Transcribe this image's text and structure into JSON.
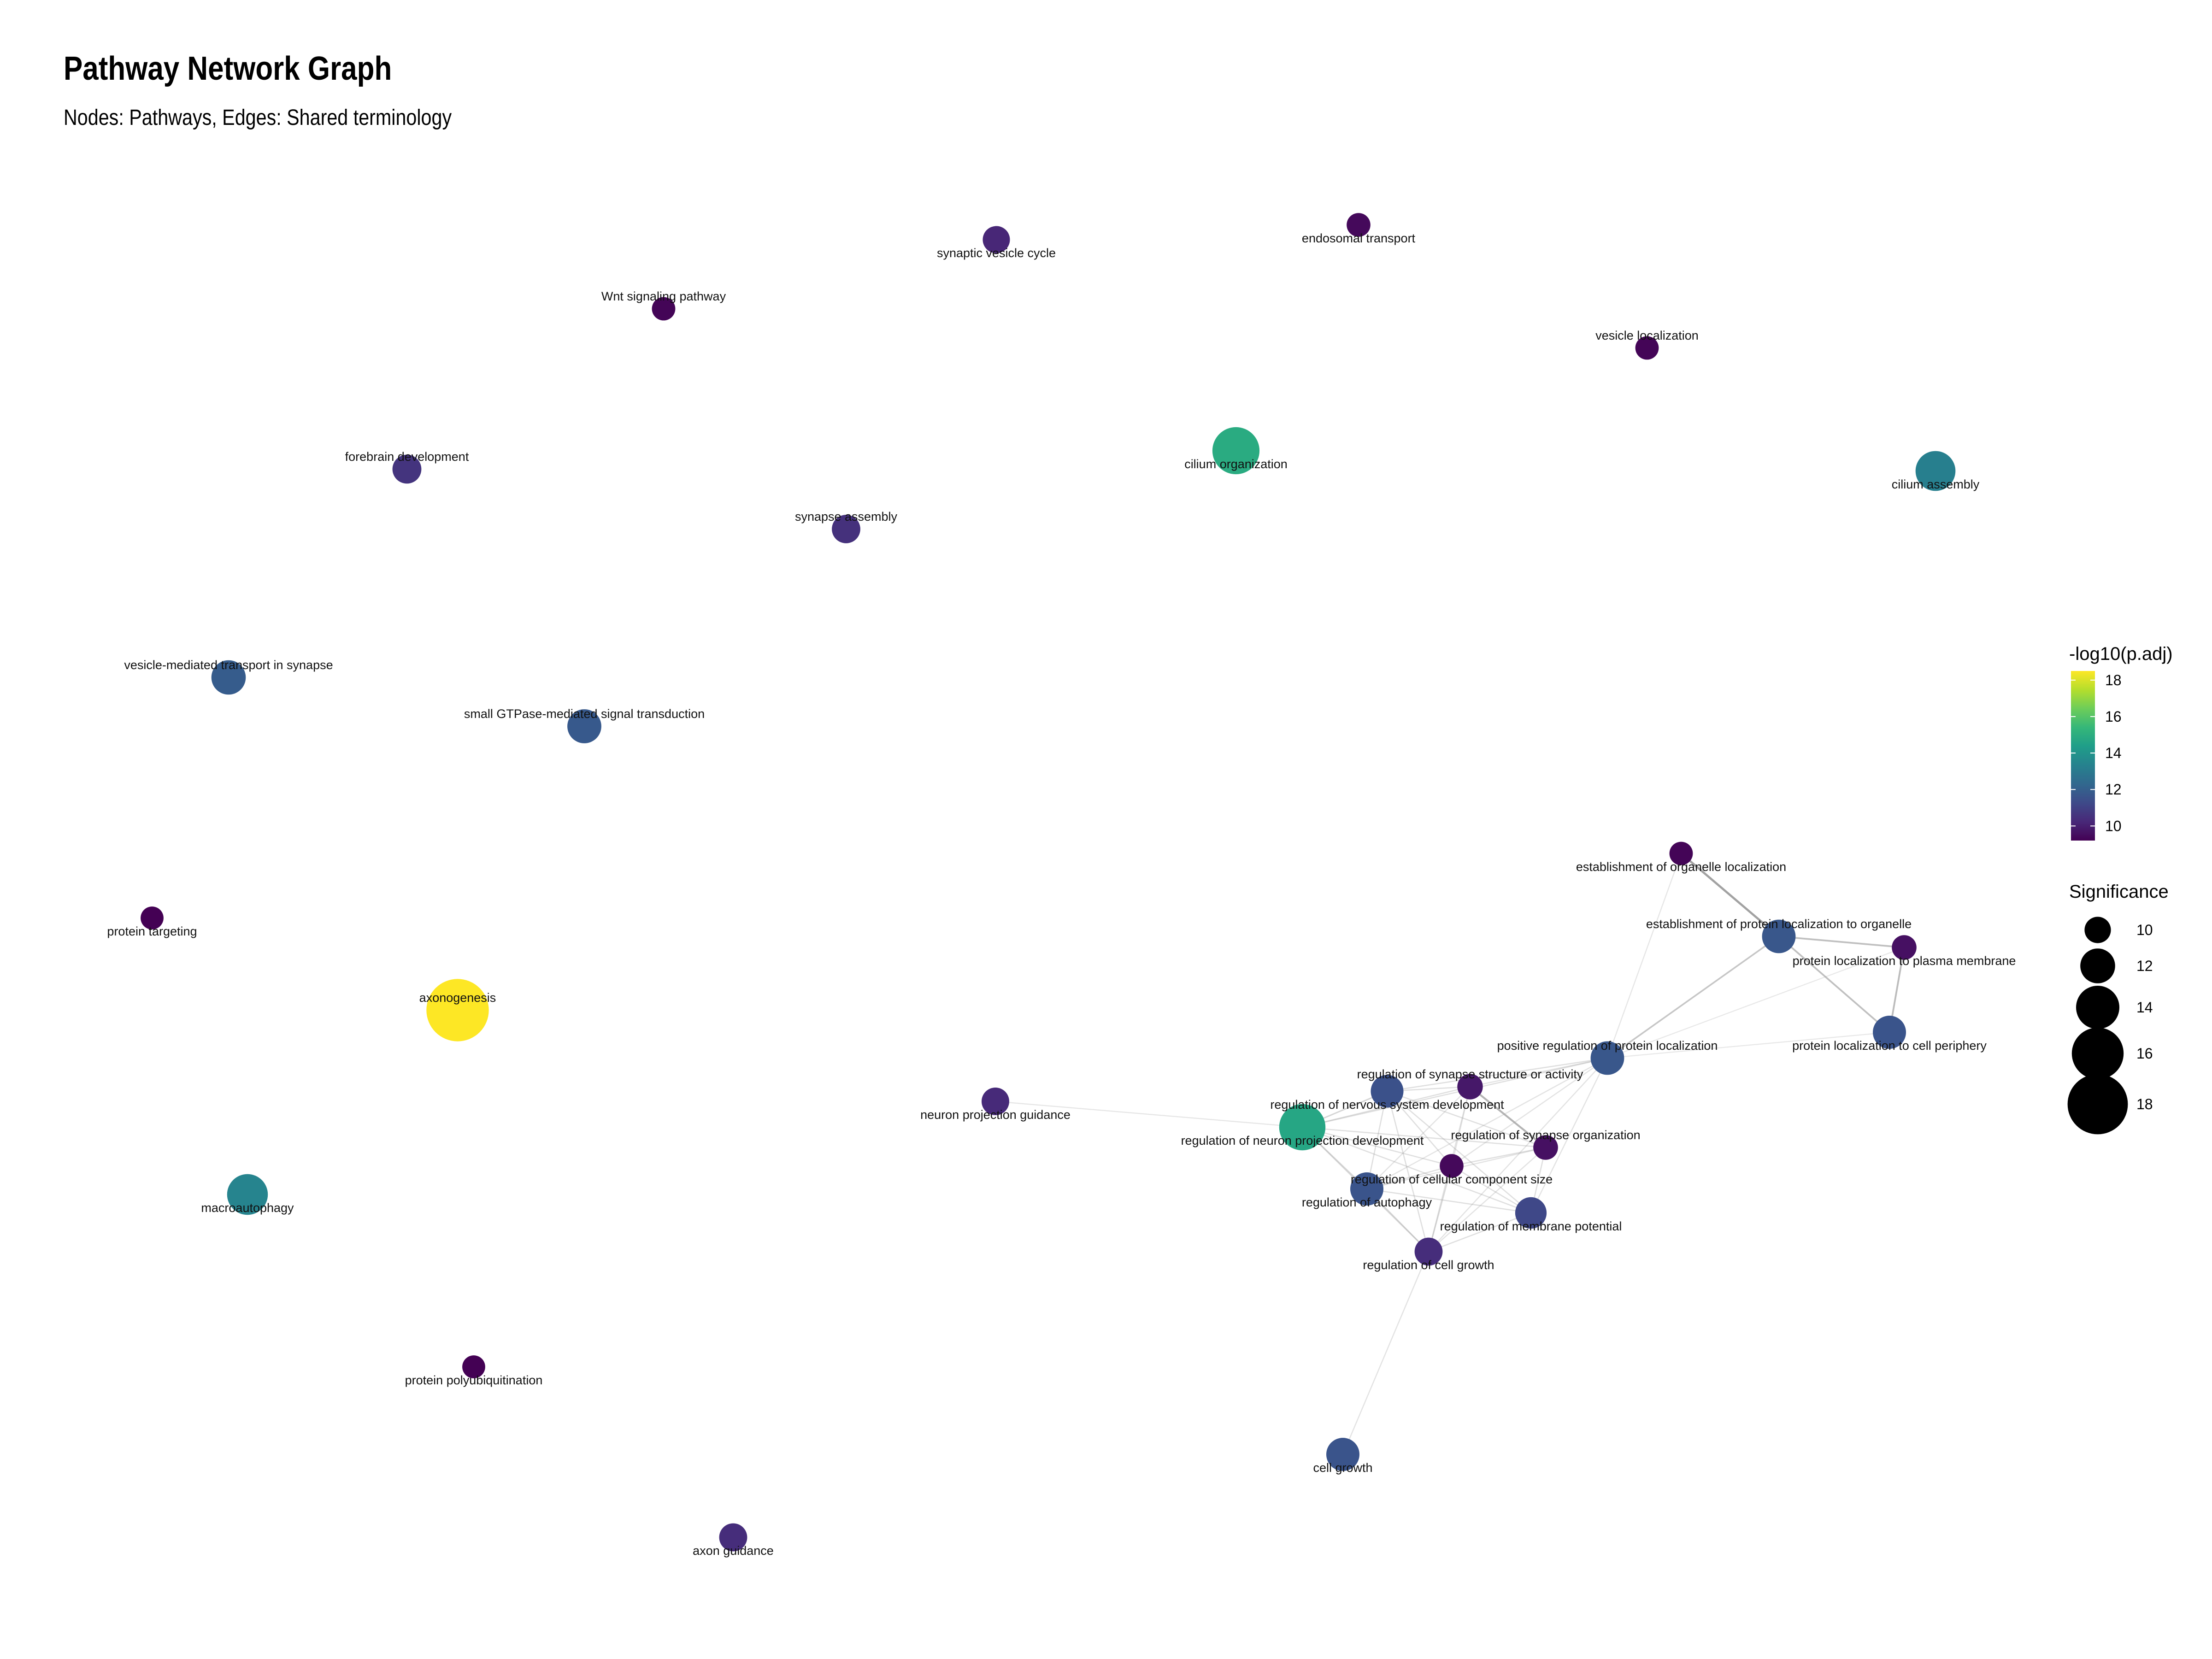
{
  "header": {
    "title": "Pathway Network Graph",
    "subtitle": "Nodes: Pathways, Edges: Shared terminology"
  },
  "colors": {
    "viridis": [
      "#440154",
      "#482878",
      "#3E4A89",
      "#31688E",
      "#26828E",
      "#1F9E89",
      "#35B779",
      "#6DCD59",
      "#B4DE2C",
      "#FDE725"
    ],
    "edge": "#9a9a9a"
  },
  "legend": {
    "color_title": "-log10(p.adj)",
    "color_range": [
      9.2,
      18.5
    ],
    "color_ticks": [
      10,
      12,
      14,
      16,
      18
    ],
    "size_title": "Significance",
    "size_ticks": [
      10,
      12,
      14,
      16,
      18
    ]
  },
  "chart_data": {
    "type": "network",
    "nodes": [
      {
        "id": "synaptic vesicle cycle",
        "label": "synaptic vesicle cycle",
        "value": 10.2,
        "label_pos": "below"
      },
      {
        "id": "endosomal transport",
        "label": "endosomal transport",
        "value": 9.4,
        "label_pos": "below"
      },
      {
        "id": "Wnt signaling pathway",
        "label": "Wnt signaling pathway",
        "value": 9.3,
        "label_pos": "above"
      },
      {
        "id": "vesicle localization",
        "label": "vesicle localization",
        "value": 9.3,
        "label_pos": "above"
      },
      {
        "id": "cilium organization",
        "label": "cilium organization",
        "value": 14.9,
        "label_pos": "below"
      },
      {
        "id": "cilium assembly",
        "label": "cilium assembly",
        "value": 13.2,
        "label_pos": "below"
      },
      {
        "id": "forebrain development",
        "label": "forebrain development",
        "value": 10.6,
        "label_pos": "above"
      },
      {
        "id": "synapse assembly",
        "label": "synapse assembly",
        "value": 10.5,
        "label_pos": "above"
      },
      {
        "id": "vesicle-mediated transport in synapse",
        "label": "vesicle-mediated transport in synapse",
        "value": 11.9,
        "label_pos": "above"
      },
      {
        "id": "small GTPase-mediated signal transduction",
        "label": "small GTPase-mediated signal transduction",
        "value": 11.8,
        "label_pos": "above"
      },
      {
        "id": "protein targeting",
        "label": "protein targeting",
        "value": 9.2,
        "label_pos": "below"
      },
      {
        "id": "axonogenesis",
        "label": "axonogenesis",
        "value": 18.5,
        "label_pos": "above"
      },
      {
        "id": "macroautophagy",
        "label": "macroautophagy",
        "value": 13.4,
        "label_pos": "below"
      },
      {
        "id": "protein polyubiquitination",
        "label": "protein polyubiquitination",
        "value": 9.2,
        "label_pos": "below"
      },
      {
        "id": "axon guidance",
        "label": "axon guidance",
        "value": 10.4,
        "label_pos": "below"
      },
      {
        "id": "neuron projection guidance",
        "label": "neuron projection guidance",
        "value": 10.3,
        "label_pos": "below"
      },
      {
        "id": "establishment of organelle localization",
        "label": "establishment of organelle localization",
        "value": 9.3,
        "label_pos": "below"
      },
      {
        "id": "establishment of protein localization to organelle",
        "label": "establishment of protein localization to organelle",
        "value": 11.7,
        "label_pos": "above"
      },
      {
        "id": "protein localization to plasma membrane",
        "label": "protein localization to plasma membrane",
        "value": 9.6,
        "label_pos": "below"
      },
      {
        "id": "protein localization to cell periphery",
        "label": "protein localization to cell periphery",
        "value": 11.6,
        "label_pos": "below"
      },
      {
        "id": "positive regulation of protein localization",
        "label": "positive regulation of protein localization",
        "value": 11.7,
        "label_pos": "above"
      },
      {
        "id": "regulation of synapse structure or activity",
        "label": "regulation of synapse structure or activity",
        "value": 9.8,
        "label_pos": "above"
      },
      {
        "id": "regulation of nervous system development",
        "label": "regulation of nervous system development",
        "value": 11.5,
        "label_pos": "below"
      },
      {
        "id": "regulation of neuron projection development",
        "label": "regulation of neuron projection development",
        "value": 14.7,
        "label_pos": "below"
      },
      {
        "id": "regulation of synapse organization",
        "label": "regulation of synapse organization",
        "value": 9.6,
        "label_pos": "above"
      },
      {
        "id": "regulation of cellular component size",
        "label": "regulation of cellular component size",
        "value": 9.4,
        "label_pos": "below"
      },
      {
        "id": "regulation of autophagy",
        "label": "regulation of autophagy",
        "value": 11.6,
        "label_pos": "below"
      },
      {
        "id": "regulation of membrane potential",
        "label": "regulation of membrane potential",
        "value": 11.2,
        "label_pos": "below"
      },
      {
        "id": "regulation of cell growth",
        "label": "regulation of cell growth",
        "value": 10.4,
        "label_pos": "below"
      },
      {
        "id": "cell growth",
        "label": "cell growth",
        "value": 11.6,
        "label_pos": "below"
      }
    ],
    "edges": [
      {
        "source": "establishment of organelle localization",
        "target": "establishment of protein localization to organelle",
        "weight": 0.9
      },
      {
        "source": "establishment of protein localization to organelle",
        "target": "protein localization to plasma membrane",
        "weight": 0.55
      },
      {
        "source": "establishment of protein localization to organelle",
        "target": "protein localization to cell periphery",
        "weight": 0.55
      },
      {
        "source": "protein localization to plasma membrane",
        "target": "protein localization to cell periphery",
        "weight": 0.6
      },
      {
        "source": "establishment of protein localization to organelle",
        "target": "positive regulation of protein localization",
        "weight": 0.5
      },
      {
        "source": "establishment of organelle localization",
        "target": "positive regulation of protein localization",
        "weight": 0.12
      },
      {
        "source": "protein localization to plasma membrane",
        "target": "positive regulation of protein localization",
        "weight": 0.1
      },
      {
        "source": "protein localization to cell periphery",
        "target": "positive regulation of protein localization",
        "weight": 0.1
      },
      {
        "source": "positive regulation of protein localization",
        "target": "regulation of synapse structure or activity",
        "weight": 0.15
      },
      {
        "source": "positive regulation of protein localization",
        "target": "regulation of nervous system development",
        "weight": 0.2
      },
      {
        "source": "positive regulation of protein localization",
        "target": "regulation of neuron projection development",
        "weight": 0.2
      },
      {
        "source": "positive regulation of protein localization",
        "target": "regulation of autophagy",
        "weight": 0.15
      },
      {
        "source": "positive regulation of protein localization",
        "target": "regulation of membrane potential",
        "weight": 0.15
      },
      {
        "source": "positive regulation of protein localization",
        "target": "regulation of cellular component size",
        "weight": 0.15
      },
      {
        "source": "positive regulation of protein localization",
        "target": "regulation of cell growth",
        "weight": 0.15
      },
      {
        "source": "regulation of synapse structure or activity",
        "target": "regulation of synapse organization",
        "weight": 0.7
      },
      {
        "source": "regulation of synapse structure or activity",
        "target": "regulation of nervous system development",
        "weight": 0.2
      },
      {
        "source": "regulation of synapse structure or activity",
        "target": "regulation of neuron projection development",
        "weight": 0.2
      },
      {
        "source": "regulation of synapse structure or activity",
        "target": "regulation of cellular component size",
        "weight": 0.15
      },
      {
        "source": "regulation of synapse structure or activity",
        "target": "regulation of autophagy",
        "weight": 0.15
      },
      {
        "source": "regulation of synapse structure or activity",
        "target": "regulation of cell growth",
        "weight": 0.15
      },
      {
        "source": "regulation of nervous system development",
        "target": "regulation of neuron projection development",
        "weight": 0.3
      },
      {
        "source": "regulation of nervous system development",
        "target": "regulation of synapse organization",
        "weight": 0.2
      },
      {
        "source": "regulation of nervous system development",
        "target": "regulation of cellular component size",
        "weight": 0.2
      },
      {
        "source": "regulation of nervous system development",
        "target": "regulation of autophagy",
        "weight": 0.2
      },
      {
        "source": "regulation of nervous system development",
        "target": "regulation of membrane potential",
        "weight": 0.2
      },
      {
        "source": "regulation of nervous system development",
        "target": "regulation of cell growth",
        "weight": 0.2
      },
      {
        "source": "regulation of neuron projection development",
        "target": "regulation of synapse organization",
        "weight": 0.2
      },
      {
        "source": "regulation of neuron projection development",
        "target": "regulation of cellular component size",
        "weight": 0.2
      },
      {
        "source": "regulation of neuron projection development",
        "target": "regulation of autophagy",
        "weight": 0.25
      },
      {
        "source": "regulation of neuron projection development",
        "target": "regulation of membrane potential",
        "weight": 0.2
      },
      {
        "source": "regulation of neuron projection development",
        "target": "regulation of cell growth",
        "weight": 0.25
      },
      {
        "source": "regulation of neuron projection development",
        "target": "neuron projection guidance",
        "weight": 0.12
      },
      {
        "source": "regulation of synapse organization",
        "target": "regulation of cellular component size",
        "weight": 0.2
      },
      {
        "source": "regulation of synapse organization",
        "target": "regulation of autophagy",
        "weight": 0.15
      },
      {
        "source": "regulation of synapse organization",
        "target": "regulation of membrane potential",
        "weight": 0.2
      },
      {
        "source": "regulation of synapse organization",
        "target": "regulation of cell growth",
        "weight": 0.15
      },
      {
        "source": "regulation of cellular component size",
        "target": "regulation of autophagy",
        "weight": 0.2
      },
      {
        "source": "regulation of cellular component size",
        "target": "regulation of membrane potential",
        "weight": 0.2
      },
      {
        "source": "regulation of cellular component size",
        "target": "regulation of cell growth",
        "weight": 0.25
      },
      {
        "source": "regulation of autophagy",
        "target": "regulation of membrane potential",
        "weight": 0.2
      },
      {
        "source": "regulation of autophagy",
        "target": "regulation of cell growth",
        "weight": 0.25
      },
      {
        "source": "regulation of membrane potential",
        "target": "regulation of cell growth",
        "weight": 0.2
      },
      {
        "source": "regulation of cell growth",
        "target": "cell growth",
        "weight": 0.15
      }
    ]
  }
}
